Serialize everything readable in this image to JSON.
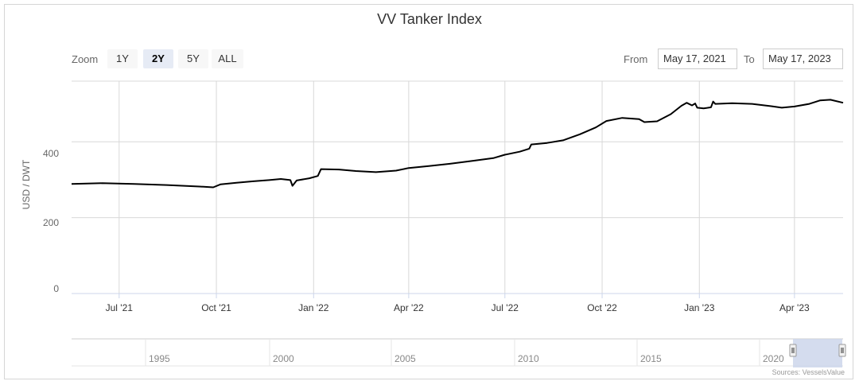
{
  "zoom": {
    "label": "Zoom",
    "buttons": [
      "1Y",
      "2Y",
      "5Y",
      "ALL"
    ],
    "selected": "2Y"
  },
  "range": {
    "from_label": "From",
    "from_value": "May 17, 2021",
    "to_label": "To",
    "to_value": "May 17, 2023"
  },
  "navigator": {
    "tick_labels": [
      "1995",
      "2000",
      "2005",
      "2010",
      "2015",
      "2020"
    ]
  },
  "credits": "Sources: VesselsValue",
  "colors": {
    "line": "#000000",
    "grid": "#d8d8d8",
    "navigator_mask": "#ccd6eb"
  },
  "chart_data": {
    "type": "line",
    "title": "VV Tanker Index",
    "ylabel": "USD / DWT",
    "ylim": [
      0,
      560
    ],
    "yticks": [
      0,
      200,
      400
    ],
    "grid": true,
    "x_range": [
      "2021-05-17",
      "2023-05-17"
    ],
    "xticks": [
      {
        "date": "2021-07-01",
        "label": "Jul '21"
      },
      {
        "date": "2021-10-01",
        "label": "Oct '21"
      },
      {
        "date": "2022-01-01",
        "label": "Jan '22"
      },
      {
        "date": "2022-04-01",
        "label": "Apr '22"
      },
      {
        "date": "2022-07-01",
        "label": "Jul '22"
      },
      {
        "date": "2022-10-01",
        "label": "Oct '22"
      },
      {
        "date": "2023-01-01",
        "label": "Jan '23"
      },
      {
        "date": "2023-04-01",
        "label": "Apr '23"
      }
    ],
    "series": [
      {
        "name": "",
        "points": [
          [
            "2021-05-17",
            289
          ],
          [
            "2021-06-15",
            291
          ],
          [
            "2021-07-15",
            289
          ],
          [
            "2021-08-15",
            286
          ],
          [
            "2021-09-15",
            282
          ],
          [
            "2021-09-28",
            280
          ],
          [
            "2021-10-05",
            288
          ],
          [
            "2021-10-20",
            292
          ],
          [
            "2021-11-05",
            296
          ],
          [
            "2021-11-20",
            299
          ],
          [
            "2021-12-01",
            302
          ],
          [
            "2021-12-10",
            299
          ],
          [
            "2021-12-12",
            284
          ],
          [
            "2021-12-16",
            298
          ],
          [
            "2021-12-28",
            304
          ],
          [
            "2022-01-05",
            310
          ],
          [
            "2022-01-08",
            328
          ],
          [
            "2022-01-25",
            327
          ],
          [
            "2022-02-10",
            323
          ],
          [
            "2022-03-01",
            320
          ],
          [
            "2022-03-20",
            324
          ],
          [
            "2022-04-01",
            331
          ],
          [
            "2022-04-20",
            336
          ],
          [
            "2022-05-10",
            342
          ],
          [
            "2022-06-01",
            350
          ],
          [
            "2022-06-20",
            357
          ],
          [
            "2022-07-01",
            366
          ],
          [
            "2022-07-15",
            374
          ],
          [
            "2022-07-24",
            382
          ],
          [
            "2022-07-26",
            393
          ],
          [
            "2022-08-10",
            397
          ],
          [
            "2022-08-25",
            404
          ],
          [
            "2022-09-10",
            420
          ],
          [
            "2022-09-25",
            438
          ],
          [
            "2022-10-05",
            455
          ],
          [
            "2022-10-20",
            463
          ],
          [
            "2022-11-05",
            460
          ],
          [
            "2022-11-10",
            452
          ],
          [
            "2022-11-22",
            454
          ],
          [
            "2022-12-05",
            473
          ],
          [
            "2022-12-15",
            495
          ],
          [
            "2022-12-20",
            503
          ],
          [
            "2022-12-25",
            496
          ],
          [
            "2022-12-28",
            501
          ],
          [
            "2022-12-30",
            490
          ],
          [
            "2023-01-05",
            488
          ],
          [
            "2023-01-12",
            491
          ],
          [
            "2023-01-14",
            506
          ],
          [
            "2023-01-16",
            500
          ],
          [
            "2023-02-01",
            502
          ],
          [
            "2023-02-20",
            500
          ],
          [
            "2023-03-10",
            494
          ],
          [
            "2023-03-20",
            490
          ],
          [
            "2023-04-01",
            493
          ],
          [
            "2023-04-15",
            500
          ],
          [
            "2023-04-25",
            509
          ],
          [
            "2023-05-05",
            511
          ],
          [
            "2023-05-17",
            503
          ]
        ]
      }
    ]
  }
}
